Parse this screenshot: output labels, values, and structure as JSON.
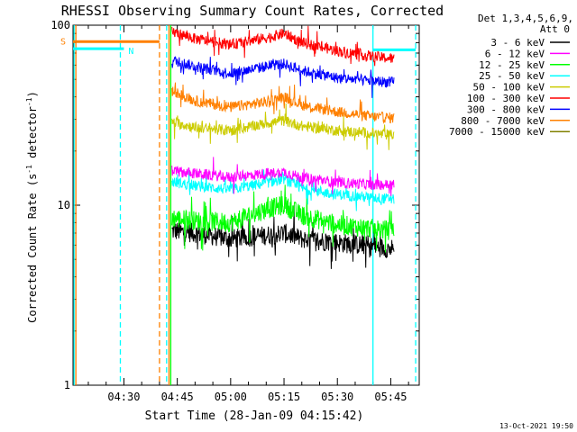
{
  "chart_data": {
    "type": "line",
    "title": "RHESSI Observing Summary Count Rates, Corrected",
    "xlabel": "Start Time (28-Jan-09 04:15:42)",
    "ylabel_main": "Corrected Count Rate (s",
    "ylabel_sup1": "-1",
    "ylabel_mid": " detector",
    "ylabel_sup2": "-1",
    "ylabel_end": ")",
    "y_scale": "log",
    "ylim": [
      1,
      100
    ],
    "xlim": [
      "04:15:42",
      "05:53:00"
    ],
    "x_ticks": [
      {
        "label": "04:30",
        "min": 30
      },
      {
        "label": "04:45",
        "min": 45
      },
      {
        "label": "05:00",
        "min": 60
      },
      {
        "label": "05:15",
        "min": 75
      },
      {
        "label": "05:30",
        "min": 90
      },
      {
        "label": "05:45",
        "min": 105
      }
    ],
    "y_ticks": [
      {
        "label": "1",
        "value": 1
      },
      {
        "label": "10",
        "value": 10
      },
      {
        "label": "100",
        "value": 100
      }
    ],
    "legend_header": [
      "Det 1,3,4,5,6,9,",
      "Att 0"
    ],
    "legend_position": "right",
    "timestamp": "13-Oct-2021 19:50",
    "flag_markers": [
      {
        "label": "S",
        "color": "#ff8000",
        "start": "04:15:42",
        "end": "04:40:00",
        "value": 81
      },
      {
        "label": "N",
        "color": "#00ffff",
        "start": "04:15:42",
        "end": "04:30:00",
        "value": 74
      },
      {
        "label": "",
        "color": "#00ffff",
        "start": "05:40:00",
        "end": "05:52:00",
        "value": 73
      }
    ],
    "vertical_markers": [
      {
        "time": "04:16:00",
        "color": "#00ffff",
        "style": "solid"
      },
      {
        "time": "04:16:30",
        "color": "#ff8000",
        "style": "solid"
      },
      {
        "time": "04:29:00",
        "color": "#00ffff",
        "style": "dashed"
      },
      {
        "time": "04:40:00",
        "color": "#ff8000",
        "style": "dashed"
      },
      {
        "time": "04:42:00",
        "color": "#00ffff",
        "style": "dashed"
      },
      {
        "time": "04:42:40",
        "color": "#ff8000",
        "style": "solid"
      },
      {
        "time": "04:43:10",
        "color": "#00ff00",
        "style": "solid"
      },
      {
        "time": "05:40:00",
        "color": "#00ffff",
        "style": "solid"
      },
      {
        "time": "05:52:00",
        "color": "#00ffff",
        "style": "dashed"
      }
    ],
    "series": [
      {
        "name": "3 - 6 keV",
        "color": "#000000",
        "x": [
          43.5,
          50,
          60,
          70,
          75,
          80,
          90,
          100,
          106
        ],
        "values": [
          7.2,
          7.0,
          6.5,
          6.8,
          7.0,
          6.5,
          6.2,
          5.9,
          5.7
        ]
      },
      {
        "name": "6 - 12 keV",
        "color": "#ff00ff",
        "x": [
          43.5,
          50,
          60,
          70,
          75,
          80,
          90,
          100,
          106
        ],
        "values": [
          15.5,
          15.0,
          14.3,
          15.0,
          15.3,
          14.2,
          13.4,
          13.0,
          13.0
        ]
      },
      {
        "name": "12 - 25 keV",
        "color": "#00ff00",
        "x": [
          43.5,
          50,
          60,
          70,
          75,
          80,
          90,
          100,
          106
        ],
        "values": [
          8.5,
          8.2,
          8.0,
          9.5,
          10.0,
          8.8,
          7.8,
          7.4,
          7.2
        ]
      },
      {
        "name": "25 - 50 keV",
        "color": "#00ffff",
        "x": [
          43.5,
          50,
          60,
          70,
          75,
          80,
          90,
          100,
          106
        ],
        "values": [
          13.5,
          12.8,
          12.2,
          13.3,
          14.0,
          12.4,
          11.5,
          11.0,
          10.8
        ]
      },
      {
        "name": "50 - 100 keV",
        "color": "#cccc00",
        "x": [
          43.5,
          50,
          60,
          70,
          75,
          80,
          90,
          100,
          106
        ],
        "values": [
          29.0,
          27.0,
          26.0,
          28.5,
          29.5,
          27.5,
          26.0,
          25.0,
          24.5
        ]
      },
      {
        "name": "100 - 300 keV",
        "color": "#ff0000",
        "x": [
          43.5,
          50,
          60,
          70,
          75,
          80,
          90,
          100,
          106
        ],
        "values": [
          92.0,
          84.0,
          78.0,
          85.0,
          90.0,
          80.0,
          72.0,
          67.0,
          65.0
        ]
      },
      {
        "name": "300 - 800 keV",
        "color": "#0000ff",
        "x": [
          43.5,
          50,
          60,
          70,
          75,
          80,
          90,
          100,
          106
        ],
        "values": [
          64.0,
          59.0,
          54.0,
          59.0,
          61.0,
          56.0,
          51.0,
          49.0,
          48.0
        ]
      },
      {
        "name": "800 - 7000 keV",
        "color": "#ff8000",
        "x": [
          43.5,
          50,
          60,
          70,
          75,
          80,
          90,
          100,
          106
        ],
        "values": [
          43.0,
          38.0,
          35.0,
          37.5,
          40.0,
          36.0,
          33.0,
          31.0,
          30.5
        ]
      },
      {
        "name": "7000 - 15000 keV",
        "color": "#808000",
        "x": [],
        "values": []
      }
    ]
  }
}
